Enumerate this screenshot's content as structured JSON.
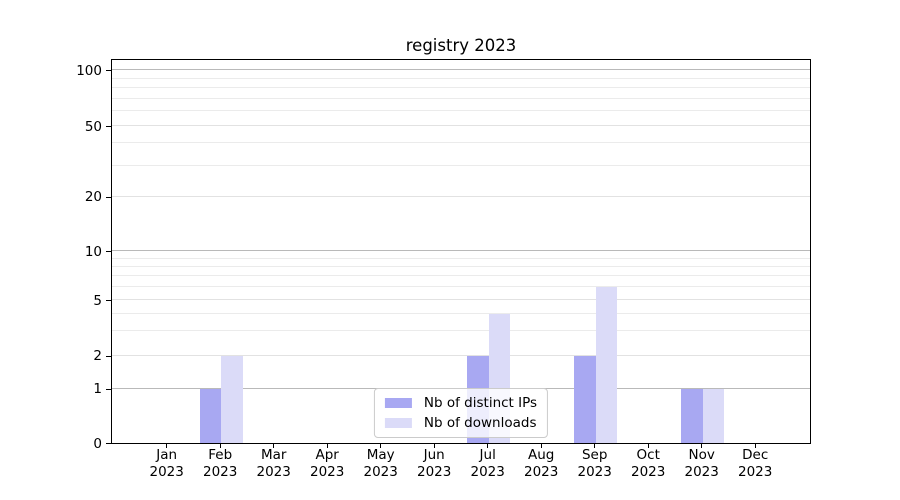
{
  "chart_data": {
    "type": "bar",
    "title": "registry 2023",
    "categories": [
      "Jan",
      "Feb",
      "Mar",
      "Apr",
      "May",
      "Jun",
      "Jul",
      "Aug",
      "Sep",
      "Oct",
      "Nov",
      "Dec"
    ],
    "category_year": "2023",
    "series": [
      {
        "name": "Nb of distinct IPs",
        "color": "#a8a8f2",
        "values": [
          0,
          1,
          0,
          0,
          0,
          0,
          2,
          0,
          2,
          0,
          1,
          0
        ]
      },
      {
        "name": "Nb of downloads",
        "color": "#dbdbf8",
        "values": [
          0,
          2,
          0,
          0,
          0,
          0,
          4,
          0,
          6,
          0,
          1,
          0
        ]
      }
    ],
    "y_axis": {
      "scale": "symlog",
      "ticks": [
        0,
        1,
        2,
        5,
        10,
        20,
        50,
        100
      ],
      "minor_ticks": [
        3,
        4,
        6,
        7,
        8,
        9,
        30,
        40,
        60,
        70,
        80,
        90
      ],
      "ylim": [
        0,
        116
      ]
    },
    "xlabel": "",
    "ylabel": "",
    "grid": true,
    "legend": {
      "position": "lower center",
      "entries": [
        "Nb of distinct IPs",
        "Nb of downloads"
      ]
    }
  }
}
